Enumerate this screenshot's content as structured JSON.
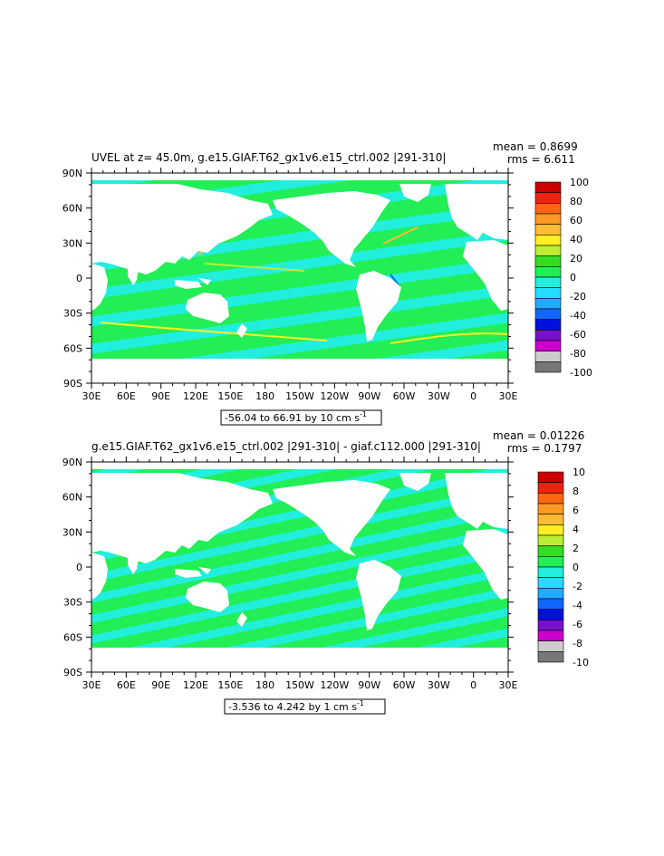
{
  "panels": [
    {
      "title": "UVEL at z=  45.0m, g.e15.GIAF.T62_gx1v6.e15_ctrl.002 |291-310|",
      "mean_text": "mean = 0.8699",
      "rms_text": "rms = 6.611",
      "range_text": "-56.04 to 66.91 by 10 cm s",
      "range_exp": "-1",
      "colorbar_labels": [
        "100",
        "80",
        "60",
        "40",
        "20",
        "0",
        "-20",
        "-40",
        "-60",
        "-80",
        "-100"
      ]
    },
    {
      "title": "g.e15.GIAF.T62_gx1v6.e15_ctrl.002 |291-310| - giaf.c112.000 |291-310|",
      "mean_text": "mean = 0.01226",
      "rms_text": "rms = 0.1797",
      "range_text": "-3.536 to 4.242 by 1 cm s",
      "range_exp": "-1",
      "colorbar_labels": [
        "10",
        "8",
        "6",
        "4",
        "2",
        "0",
        "-2",
        "-4",
        "-6",
        "-8",
        "-10"
      ]
    }
  ],
  "axes": {
    "lat_labels": [
      "90N",
      "60N",
      "30N",
      "0",
      "30S",
      "60S",
      "90S"
    ],
    "lon_labels": [
      "30E",
      "60E",
      "90E",
      "120E",
      "150E",
      "180",
      "150W",
      "120W",
      "90W",
      "60W",
      "30W",
      "0",
      "30E"
    ]
  },
  "colors": {
    "ocean_main": "#22ee55",
    "ocean_alt": "#22eedd",
    "land": "#ffffff",
    "colorbar": [
      "#cc0000",
      "#ee2211",
      "#ff6611",
      "#ff9922",
      "#ffbb33",
      "#ffee22",
      "#bbee33",
      "#33dd22",
      "#22ee55",
      "#22eedd",
      "#22ddff",
      "#22aaff",
      "#1166ff",
      "#0011dd",
      "#7711cc",
      "#cc00cc",
      "#cccccc",
      "#777777"
    ]
  }
}
